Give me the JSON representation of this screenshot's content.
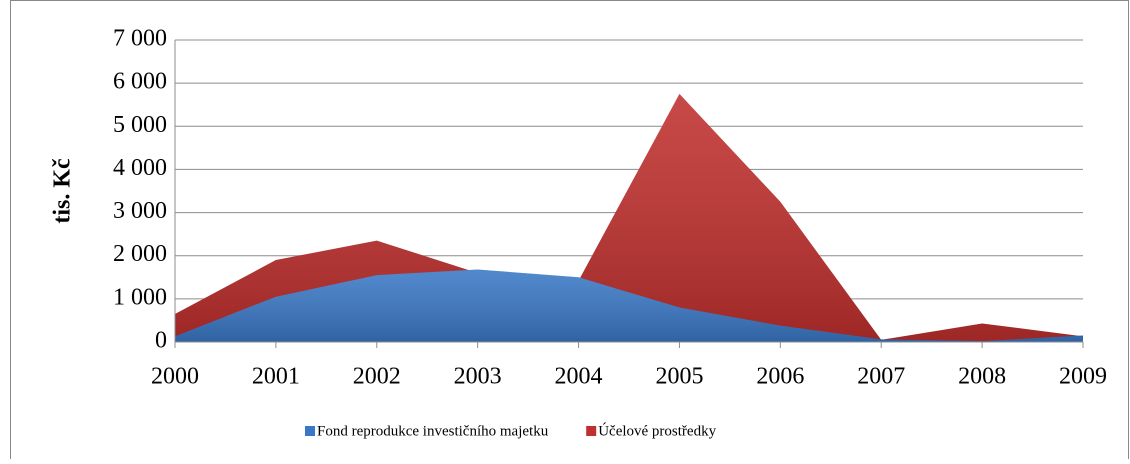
{
  "chart_data": {
    "type": "area",
    "y_label": "tis. Kč",
    "categories": [
      "2000",
      "2001",
      "2002",
      "2003",
      "2004",
      "2005",
      "2006",
      "2007",
      "2008",
      "2009"
    ],
    "series": [
      {
        "name": "Účelové prostředky",
        "color": "#c0302e",
        "values": [
          650,
          1900,
          2350,
          1600,
          1420,
          5750,
          3250,
          50,
          430,
          130
        ]
      },
      {
        "name": "Fond reprodukce investičního majetku",
        "color": "#3a78c6",
        "values": [
          130,
          1050,
          1550,
          1680,
          1500,
          800,
          380,
          60,
          20,
          150
        ]
      }
    ],
    "legend_order": [
      1,
      0
    ],
    "ylim": [
      0,
      7000
    ],
    "yticks": [
      {
        "value": 0,
        "label": "0"
      },
      {
        "value": 1000,
        "label": "1 000"
      },
      {
        "value": 2000,
        "label": "2 000"
      },
      {
        "value": 3000,
        "label": "3 000"
      },
      {
        "value": 4000,
        "label": "4 000"
      },
      {
        "value": 5000,
        "label": "5 000"
      },
      {
        "value": 6000,
        "label": "6 000"
      },
      {
        "value": 7000,
        "label": "7 000"
      }
    ],
    "grid": true,
    "legend": "bottom"
  }
}
